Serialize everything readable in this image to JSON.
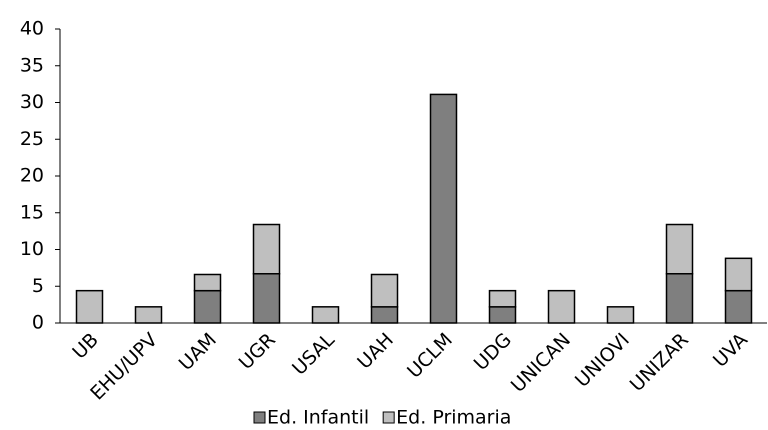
{
  "chart_data": {
    "type": "stacked_bar",
    "categories": [
      "UB",
      "EHU/UPV",
      "UAM",
      "UGR",
      "USAL",
      "UAH",
      "UCLM",
      "UDG",
      "UNICAN",
      "UNIOVI",
      "UNIZAR",
      "UVA"
    ],
    "series": [
      {
        "name": "Ed. Infantil",
        "color": "#7f7f7f",
        "values": [
          0,
          0,
          4.4,
          6.7,
          0,
          2.2,
          31.1,
          2.2,
          0,
          0,
          6.7,
          4.4
        ]
      },
      {
        "name": "Ed. Primaria",
        "color": "#bfbfbf",
        "values": [
          4.4,
          2.2,
          2.2,
          6.7,
          2.2,
          4.4,
          0,
          2.2,
          4.4,
          2.2,
          6.7,
          4.4
        ]
      }
    ],
    "ylim": [
      0,
      40
    ],
    "yticks": [
      0,
      5,
      10,
      15,
      20,
      25,
      30,
      35,
      40
    ],
    "grid": false,
    "legend": "bottom"
  }
}
